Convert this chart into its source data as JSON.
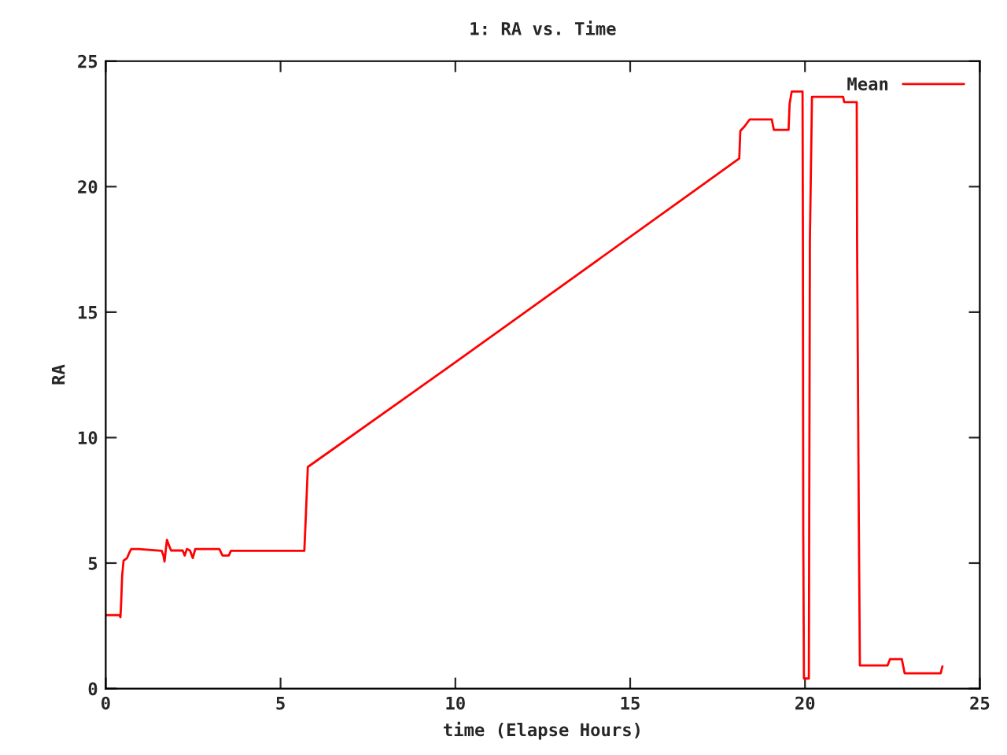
{
  "chart_data": {
    "type": "line",
    "title": "1: RA vs. Time",
    "xlabel": "time (Elapse Hours)",
    "ylabel": "RA",
    "xlim": [
      0,
      25
    ],
    "xticks": [
      0,
      5,
      10,
      15,
      20,
      25
    ],
    "ylim": [
      0,
      25
    ],
    "yticks": [
      0,
      5,
      10,
      15,
      20,
      25
    ],
    "grid": false,
    "legend": "top right",
    "marker": "none",
    "line_style": "solid",
    "series": [
      {
        "name": "Mean",
        "color": "#ff0000",
        "x": [
          0,
          0.39,
          0.42,
          0.44,
          0.47,
          0.51,
          0.61,
          0.67,
          0.73,
          0.94,
          1.6,
          1.65,
          1.68,
          1.75,
          1.81,
          1.87,
          2.2,
          2.26,
          2.32,
          2.41,
          2.49,
          2.56,
          3.25,
          3.34,
          3.52,
          3.58,
          5.68,
          5.72,
          5.78,
          10.0,
          12.0,
          18.1,
          18.12,
          18.15,
          18.27,
          18.42,
          19.05,
          19.11,
          19.53,
          19.56,
          19.62,
          19.93,
          19.94,
          19.95,
          19.97,
          20.11,
          20.12,
          20.14,
          20.2,
          21.09,
          21.12,
          21.48,
          21.49,
          21.54,
          21.57,
          22.36,
          22.43,
          22.77,
          22.85,
          23.88,
          23.93
        ],
        "values": [
          2.93,
          2.93,
          2.84,
          3.38,
          4.5,
          5.1,
          5.2,
          5.4,
          5.56,
          5.56,
          5.49,
          5.3,
          5.06,
          5.93,
          5.7,
          5.5,
          5.5,
          5.3,
          5.56,
          5.5,
          5.2,
          5.56,
          5.56,
          5.3,
          5.3,
          5.49,
          5.49,
          6.77,
          8.83,
          13.0,
          15.0,
          21.1,
          21.13,
          22.22,
          22.4,
          22.68,
          22.68,
          22.26,
          22.26,
          23.3,
          23.79,
          23.79,
          17.94,
          6.25,
          0.4,
          0.4,
          6.1,
          17.84,
          23.58,
          23.58,
          23.37,
          23.37,
          17.73,
          6.56,
          0.92,
          0.92,
          1.17,
          1.17,
          0.61,
          0.61,
          0.88
        ]
      }
    ]
  }
}
